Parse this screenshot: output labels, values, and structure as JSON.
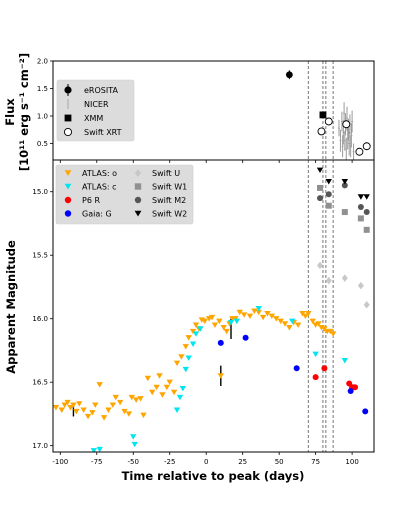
{
  "chart_data": [
    {
      "type": "scatter",
      "panel": "top",
      "ylabel": "Flux",
      "ylabel_unit": "[10$^{11}$ erg s$^{-1}$ cm$^{-2}$]",
      "ylabel_line1": "Flux",
      "ylabel_line2": "[10¹¹ erg s⁻¹ cm⁻²]",
      "xlim": [
        -105,
        115
      ],
      "ylim": [
        0.2,
        2.0
      ],
      "yticks": [
        "0.5",
        "1.0",
        "1.5",
        "2.0"
      ],
      "ytick_values": [
        0.5,
        1.0,
        1.5,
        2.0
      ],
      "legend": {
        "placement": "upper-left",
        "entries": [
          "eROSITA",
          "NICER",
          "XMM",
          "Swift XRT"
        ]
      },
      "series": [
        {
          "name": "eROSITA",
          "marker": "circle-filled",
          "color": "#000000",
          "points": [
            {
              "x": 57,
              "y": 1.75,
              "err": 0.08
            }
          ]
        },
        {
          "name": "NICER",
          "marker": "tick",
          "color": "#9a9a9a",
          "points": [
            {
              "x": 91,
              "y": 0.78,
              "err": 0.15
            },
            {
              "x": 92,
              "y": 0.55,
              "err": 0.2
            },
            {
              "x": 93,
              "y": 0.9,
              "err": 0.18
            },
            {
              "x": 93.5,
              "y": 0.45,
              "err": 0.2
            },
            {
              "x": 94,
              "y": 0.7,
              "err": 0.22
            },
            {
              "x": 94.5,
              "y": 1.05,
              "err": 0.2
            },
            {
              "x": 95,
              "y": 0.55,
              "err": 0.18
            },
            {
              "x": 95.5,
              "y": 0.85,
              "err": 0.2
            },
            {
              "x": 96,
              "y": 0.4,
              "err": 0.2
            },
            {
              "x": 96.5,
              "y": 0.95,
              "err": 0.22
            },
            {
              "x": 97,
              "y": 0.6,
              "err": 0.2
            },
            {
              "x": 97.5,
              "y": 0.75,
              "err": 0.2
            },
            {
              "x": 98,
              "y": 0.5,
              "err": 0.22
            },
            {
              "x": 98.5,
              "y": 0.85,
              "err": 0.18
            },
            {
              "x": 99,
              "y": 0.45,
              "err": 0.2
            },
            {
              "x": 99.5,
              "y": 0.65,
              "err": 0.22
            },
            {
              "x": 100,
              "y": 0.9,
              "err": 0.2
            },
            {
              "x": 101,
              "y": 0.35,
              "err": 0.15
            }
          ]
        },
        {
          "name": "XMM",
          "marker": "square-filled",
          "color": "#000000",
          "points": [
            {
              "x": 80,
              "y": 1.02,
              "err": 0.05
            }
          ]
        },
        {
          "name": "Swift XRT",
          "marker": "circle-open",
          "color": "#000000",
          "points": [
            {
              "x": 79,
              "y": 0.72,
              "err": 0.05
            },
            {
              "x": 84,
              "y": 0.9,
              "err": 0.05
            },
            {
              "x": 96,
              "y": 0.85,
              "err": 0.05
            },
            {
              "x": 105,
              "y": 0.35,
              "err": 0.05
            },
            {
              "x": 110,
              "y": 0.45,
              "err": 0.05
            }
          ]
        }
      ],
      "vlines": [
        70,
        80,
        82,
        87
      ]
    },
    {
      "type": "scatter",
      "panel": "bottom",
      "ylabel": "Apparent Magnitude",
      "xlabel": "Time relative to peak (days)",
      "xlim": [
        -105,
        115
      ],
      "ylim": [
        14.75,
        17.05
      ],
      "y_inverted": true,
      "xticks": [
        "-100",
        "-75",
        "-50",
        "-25",
        "0",
        "25",
        "50",
        "75",
        "100"
      ],
      "xtick_values": [
        -100,
        -75,
        -50,
        -25,
        0,
        25,
        50,
        75,
        100
      ],
      "yticks": [
        "15.0",
        "15.5",
        "16.0",
        "16.5",
        "17.0"
      ],
      "ytick_values": [
        15.0,
        15.5,
        16.0,
        16.5,
        17.0
      ],
      "legend": {
        "placement": "upper-left",
        "entries": [
          "ATLAS: o",
          "ATLAS: c",
          "P6 R",
          "Gaia: G",
          "Swift U",
          "Swift W1",
          "Swift M2",
          "Swift W2"
        ]
      },
      "series": [
        {
          "name": "ATLAS: o",
          "marker": "triangle-down",
          "color": "#ffa500",
          "points": [
            [
              -103,
              16.7
            ],
            [
              -99,
              16.72
            ],
            [
              -97,
              16.68
            ],
            [
              -95,
              16.66
            ],
            [
              -93,
              16.7
            ],
            [
              -91,
              16.68
            ],
            [
              -89,
              16.73
            ],
            [
              -87,
              16.67
            ],
            [
              -84,
              16.72
            ],
            [
              -81,
              16.77
            ],
            [
              -78,
              16.74
            ],
            [
              -76,
              16.68
            ],
            [
              -73,
              16.52
            ],
            [
              -70,
              16.78
            ],
            [
              -67,
              16.72
            ],
            [
              -64,
              16.68
            ],
            [
              -62,
              16.62
            ],
            [
              -59,
              16.66
            ],
            [
              -56,
              16.73
            ],
            [
              -53,
              16.75
            ],
            [
              -51,
              16.62
            ],
            [
              -48,
              16.64
            ],
            [
              -45,
              16.63
            ],
            [
              -43,
              16.76
            ],
            [
              -40,
              16.47
            ],
            [
              -37,
              16.58
            ],
            [
              -34,
              16.54
            ],
            [
              -32,
              16.45
            ],
            [
              -30,
              16.6
            ],
            [
              -27,
              16.54
            ],
            [
              -25,
              16.5
            ],
            [
              -22,
              16.58
            ],
            [
              -20,
              16.35
            ],
            [
              -17,
              16.3
            ],
            [
              -14,
              16.22
            ],
            [
              -12,
              16.15
            ],
            [
              -9,
              16.1
            ],
            [
              -7,
              16.05
            ],
            [
              -5,
              16.08
            ],
            [
              -3,
              16.01
            ],
            [
              -1,
              16.02
            ],
            [
              2,
              16.0
            ],
            [
              4,
              15.99
            ],
            [
              6,
              16.05
            ],
            [
              9,
              16.02
            ],
            [
              10,
              16.45
            ],
            [
              12,
              16.07
            ],
            [
              14,
              16.1
            ],
            [
              16,
              16.04
            ],
            [
              18,
              16.0
            ],
            [
              20,
              16.0
            ],
            [
              23,
              15.95
            ],
            [
              26,
              15.97
            ],
            [
              30,
              15.98
            ],
            [
              33,
              15.94
            ],
            [
              36,
              15.95
            ],
            [
              39,
              15.99
            ],
            [
              42,
              15.96
            ],
            [
              45,
              15.98
            ],
            [
              48,
              16.0
            ],
            [
              51,
              16.02
            ],
            [
              54,
              16.04
            ],
            [
              57,
              16.07
            ],
            [
              60,
              16.03
            ],
            [
              63,
              16.05
            ],
            [
              66,
              15.96
            ],
            [
              68,
              15.98
            ],
            [
              70,
              15.96
            ],
            [
              73,
              16.02
            ],
            [
              75,
              16.05
            ],
            [
              77,
              16.04
            ],
            [
              79,
              16.07
            ],
            [
              81,
              16.08
            ],
            [
              83,
              16.1
            ],
            [
              85,
              16.1
            ],
            [
              87,
              16.12
            ]
          ]
        },
        {
          "name": "ATLAS: c",
          "marker": "triangle-down",
          "color": "#00e5ee",
          "points": [
            [
              -98,
              17.08
            ],
            [
              -77,
              17.04
            ],
            [
              -73,
              17.03
            ],
            [
              -50,
              16.93
            ],
            [
              -49,
              16.99
            ],
            [
              -20,
              16.72
            ],
            [
              -18,
              16.62
            ],
            [
              -16,
              16.55
            ],
            [
              -14,
              16.4
            ],
            [
              -12,
              16.31
            ],
            [
              -9,
              16.2
            ],
            [
              -7,
              16.12
            ],
            [
              -4,
              16.08
            ],
            [
              17,
              16.03
            ],
            [
              21,
              16.02
            ],
            [
              36,
              15.92
            ],
            [
              59,
              16.02
            ],
            [
              75,
              16.28
            ],
            [
              95,
              16.33
            ]
          ]
        },
        {
          "name": "P6 R",
          "marker": "circle",
          "color": "#ff0000",
          "points": [
            [
              75,
              16.46
            ],
            [
              81,
              16.39
            ],
            [
              98,
              16.51
            ],
            [
              100,
              16.54
            ],
            [
              102,
              16.54
            ]
          ]
        },
        {
          "name": "Gaia: G",
          "marker": "circle",
          "color": "#0000ff",
          "points": [
            [
              10,
              16.19
            ],
            [
              27,
              16.15
            ],
            [
              62,
              16.39
            ],
            [
              99,
              16.57
            ],
            [
              109,
              16.73
            ]
          ]
        },
        {
          "name": "Swift U",
          "marker": "diamond",
          "color": "#c8c8c8",
          "points": [
            [
              78,
              15.58
            ],
            [
              84,
              15.7
            ],
            [
              95,
              15.68
            ],
            [
              106,
              15.74
            ],
            [
              110,
              15.89
            ]
          ]
        },
        {
          "name": "Swift W1",
          "marker": "square",
          "color": "#909090",
          "points": [
            [
              78,
              14.97
            ],
            [
              84,
              15.11
            ],
            [
              95,
              15.16
            ],
            [
              106,
              15.21
            ],
            [
              110,
              15.3
            ]
          ]
        },
        {
          "name": "Swift M2",
          "marker": "circle",
          "color": "#555555",
          "points": [
            [
              78,
              15.05
            ],
            [
              84,
              15.02
            ],
            [
              95,
              14.95
            ],
            [
              106,
              15.12
            ],
            [
              110,
              15.16
            ]
          ]
        },
        {
          "name": "Swift W2",
          "marker": "triangle-down",
          "color": "#000000",
          "points": [
            [
              78,
              14.83
            ],
            [
              84,
              14.92
            ],
            [
              95,
              14.92
            ],
            [
              106,
              15.04
            ],
            [
              110,
              15.04
            ]
          ]
        }
      ],
      "errorbars": [
        [
          -91,
          16.72,
          0.05
        ],
        [
          10,
          16.45,
          0.08
        ],
        [
          17,
          16.08,
          0.08
        ]
      ],
      "vlines": [
        70,
        80,
        82,
        87
      ]
    }
  ]
}
